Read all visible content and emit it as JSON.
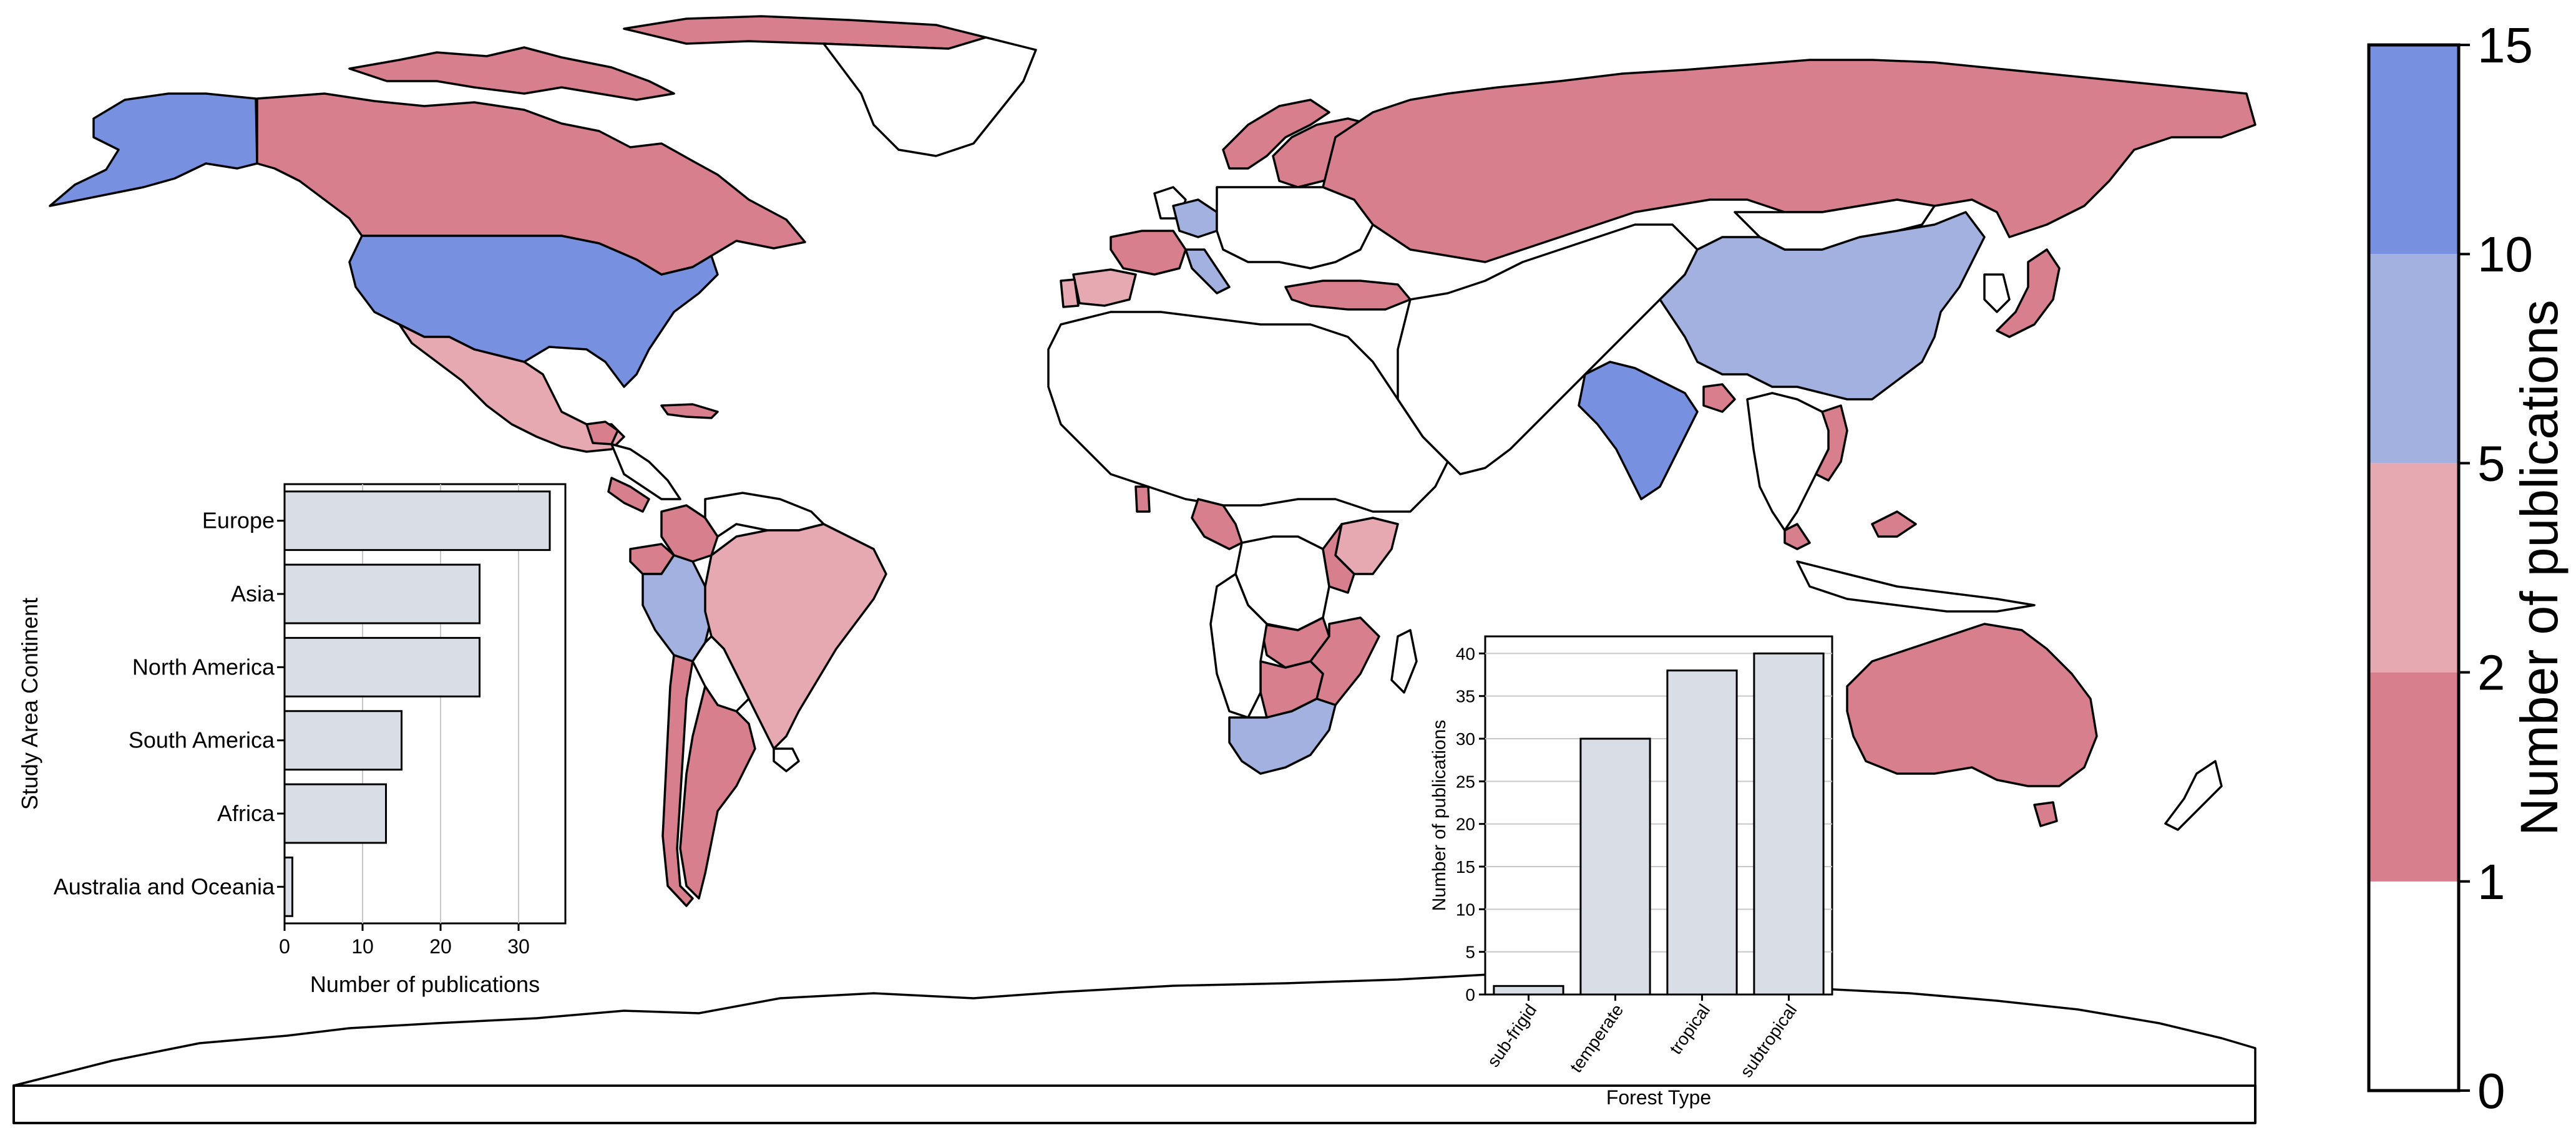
{
  "colors": {
    "none": "#ffffff",
    "bin_1_2": "#d87f8d",
    "bin_2_5": "#e6a9b2",
    "bin_5_10": "#a3b1e1",
    "bin_10_15": "#7890e0",
    "ocean": "#ffffff",
    "border": "#000000",
    "inset_bar": "#d9dde6",
    "inset_grid": "#c8c8c8"
  },
  "map": {
    "countries_by_bin": {
      "10-15": [
        "United States",
        "Alaska",
        "India"
      ],
      "5-10": [
        "China",
        "Peru",
        "South Africa",
        "Germany",
        "Italy"
      ],
      "2-5": [
        "Mexico",
        "Brazil",
        "Portugal",
        "Kenya"
      ],
      "1-2": [
        "Canada",
        "Russia",
        "Greenland-north islands",
        "Argentina",
        "Chile",
        "Australia",
        "Japan",
        "France",
        "Spain",
        "Norway",
        "Sweden",
        "Finland",
        "Turkey",
        "Cameroon",
        "Gabon",
        "Zimbabwe",
        "Zambia",
        "Malawi",
        "Mozambique",
        "Botswana",
        "Tanzania",
        "Ecuador",
        "Colombia",
        "Costa Rica",
        "Guatemala",
        "Vietnam",
        "Malaysia",
        "Bangladesh",
        "Cuba"
      ]
    }
  },
  "colorbar": {
    "label": "Number of publications",
    "ticks": [
      "0",
      "1",
      "2",
      "5",
      "10",
      "15"
    ],
    "bins": [
      {
        "from": 0,
        "to": 1,
        "color": "#ffffff"
      },
      {
        "from": 1,
        "to": 2,
        "color": "#d87f8d"
      },
      {
        "from": 2,
        "to": 5,
        "color": "#e6a9b2"
      },
      {
        "from": 5,
        "to": 10,
        "color": "#a3b1e1"
      },
      {
        "from": 10,
        "to": 15,
        "color": "#7890e0"
      }
    ]
  },
  "chart_data": [
    {
      "type": "bar",
      "orientation": "horizontal",
      "categories": [
        "Europe",
        "Asia",
        "North America",
        "South America",
        "Africa",
        "Australia and Oceania"
      ],
      "values": [
        34,
        25,
        25,
        15,
        13,
        1
      ],
      "xlabel": "Number of publications",
      "ylabel": "Study Area Continent",
      "xlim": [
        0,
        36
      ],
      "xticks": [
        "0",
        "10",
        "20",
        "30"
      ],
      "grid": "vertical"
    },
    {
      "type": "bar",
      "orientation": "vertical",
      "categories": [
        "sub-frigid",
        "temperate",
        "tropical",
        "subtropical"
      ],
      "values": [
        1,
        30,
        38,
        40
      ],
      "xlabel": "Forest Type",
      "ylabel": "Number of publications",
      "ylim": [
        0,
        42
      ],
      "yticks": [
        "0",
        "5",
        "10",
        "15",
        "20",
        "25",
        "30",
        "35",
        "40"
      ],
      "grid": "horizontal"
    }
  ]
}
